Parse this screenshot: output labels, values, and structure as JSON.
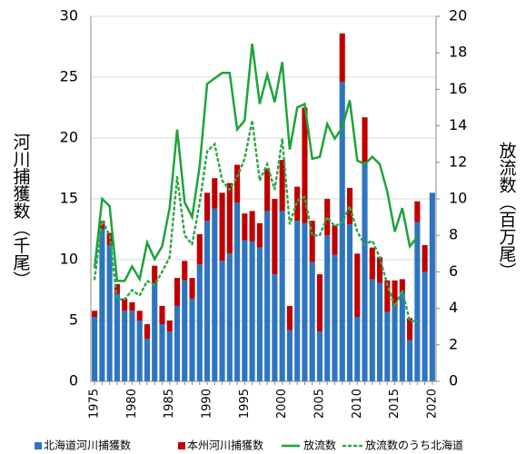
{
  "chart_data": {
    "type": "bar-line",
    "y_label": "河川捕獲数（千尾）",
    "y2_label": "放流数（百万尾）",
    "categories": [
      "1975",
      null,
      null,
      null,
      null,
      "1980",
      null,
      null,
      null,
      null,
      "1985",
      null,
      null,
      null,
      null,
      "1990",
      null,
      null,
      null,
      null,
      "1995",
      null,
      null,
      null,
      null,
      "2000",
      null,
      null,
      null,
      null,
      "2005",
      null,
      null,
      null,
      null,
      "2010",
      null,
      null,
      null,
      null,
      "2015",
      null,
      null,
      null,
      null,
      "2020"
    ],
    "series": [
      {
        "name": "北海道河川捕獲数",
        "color": "#2e75c0",
        "kind": "bar",
        "axis": "y",
        "values": [
          5.3,
          12.5,
          11.2,
          7.2,
          5.8,
          5.8,
          5.0,
          3.5,
          8.0,
          4.7,
          4.1,
          6.2,
          8.3,
          6.8,
          9.6,
          13.2,
          14.2,
          9.9,
          10.5,
          14.7,
          11.6,
          11.5,
          11.0,
          14.0,
          8.8,
          14.0,
          4.2,
          13.2,
          13.0,
          9.8,
          4.1,
          12.0,
          10.4,
          24.6,
          12.9,
          5.3,
          18.0,
          8.4,
          8.1,
          5.7,
          6.2,
          7.2,
          3.4,
          13.1,
          9.0,
          15.5
        ]
      },
      {
        "name": "本州河川捕獲数",
        "color": "#c00000",
        "kind": "bar",
        "axis": "y",
        "values": [
          0.5,
          0.7,
          1.0,
          0.8,
          1.0,
          0.7,
          0.8,
          1.2,
          1.5,
          1.5,
          0.9,
          2.3,
          1.6,
          1.7,
          2.5,
          2.3,
          2.5,
          5.6,
          5.8,
          3.1,
          2.2,
          2.5,
          2.0,
          3.5,
          6.2,
          4.2,
          2.0,
          2.8,
          9.5,
          3.4,
          4.7,
          3.0,
          2.4,
          4.0,
          3.0,
          5.2,
          3.7,
          2.6,
          2.1,
          2.6,
          2.1,
          1.2,
          1.8,
          1.7,
          2.2,
          0
        ]
      },
      {
        "name": "放流数",
        "color": "#1fa33a",
        "kind": "line",
        "dash": "solid",
        "axis": "y2",
        "values": [
          6.2,
          10.0,
          9.6,
          5.5,
          5.5,
          6.3,
          5.6,
          7.6,
          6.7,
          7.4,
          9.5,
          13.8,
          9.8,
          9.0,
          11.8,
          16.3,
          16.6,
          16.9,
          16.9,
          13.8,
          14.3,
          18.5,
          15.2,
          16.8,
          15.3,
          17.5,
          12.7,
          15.0,
          15.2,
          12.2,
          12.3,
          14.1,
          13.3,
          13.9,
          15.4,
          12.1,
          11.9,
          12.3,
          11.9,
          10.4,
          8.2,
          9.5,
          7.4,
          7.9,
          null,
          null
        ]
      },
      {
        "name": "放流数のうち北海道",
        "color": "#2fa84a",
        "kind": "line",
        "dash": "dotted",
        "axis": "y2",
        "values": [
          5.6,
          8.8,
          8.0,
          4.5,
          4.5,
          5.0,
          4.7,
          5.5,
          5.3,
          6.0,
          6.8,
          11.2,
          8.0,
          7.5,
          9.8,
          12.6,
          13.0,
          11.0,
          10.5,
          11.2,
          12.2,
          14.3,
          11.0,
          11.9,
          10.5,
          13.3,
          8.6,
          9.9,
          10.1,
          8.0,
          8.0,
          9.0,
          8.5,
          8.7,
          9.6,
          8.2,
          7.5,
          7.7,
          6.8,
          5.3,
          4.1,
          5.0,
          3.3,
          3.3,
          null,
          null
        ]
      }
    ],
    "ylim": [
      0,
      30
    ],
    "yticks": [
      0,
      5,
      10,
      15,
      20,
      25,
      30
    ],
    "y2lim": [
      0,
      20
    ],
    "y2ticks": [
      0,
      2,
      4,
      6,
      8,
      10,
      12,
      14,
      16,
      18,
      20
    ],
    "grid": true,
    "legend": "bottom"
  }
}
